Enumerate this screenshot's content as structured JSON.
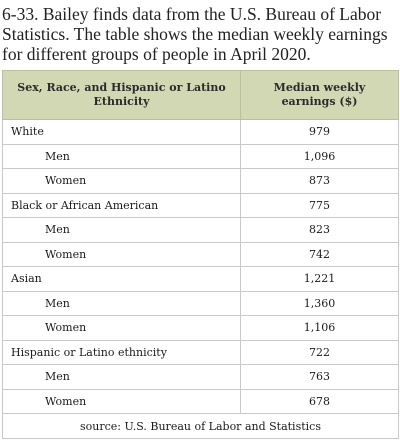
{
  "problem_text": "6-33. Bailey finds data from the U.S. Bureau of Labor Statistics. The table shows the median weekly earnings for different groups of people in April 2020.",
  "table": {
    "headers": [
      "Sex, Race, and Hispanic or Latino Ethnicity",
      "Median weekly earnings ($)"
    ],
    "rows": [
      {
        "label": "White",
        "value": "979"
      },
      {
        "label": "Men",
        "value": "1,096"
      },
      {
        "label": "Women",
        "value": "873"
      },
      {
        "label": "Black or African American",
        "value": "775"
      },
      {
        "label": "Men",
        "value": "823"
      },
      {
        "label": "Women",
        "value": "742"
      },
      {
        "label": "Asian",
        "value": "1,221"
      },
      {
        "label": "Men",
        "value": "1,360"
      },
      {
        "label": "Women",
        "value": "1,106"
      },
      {
        "label": "Hispanic or Latino ethnicity",
        "value": "722"
      },
      {
        "label": "Men",
        "value": "763"
      },
      {
        "label": "Women",
        "value": "678"
      }
    ],
    "source": "source: U.S. Bureau of Labor and Statistics"
  }
}
